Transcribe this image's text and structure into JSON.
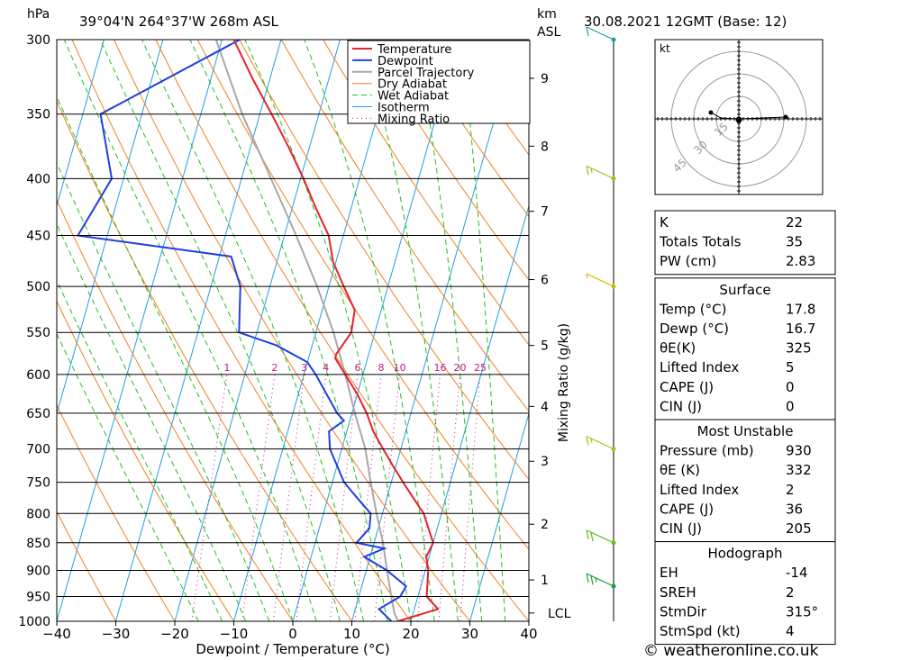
{
  "header": {
    "station": "39°04'N 264°37'W 268m ASL",
    "valid": "30.08.2021 12GMT (Base: 12)",
    "pressure_unit": "hPa",
    "height_unit": "km",
    "height_unit2": "ASL"
  },
  "footer": {
    "credit": "© weatheronline.co.uk"
  },
  "chart_data": {
    "type": "line",
    "xlabel": "Dewpoint / Temperature (°C)",
    "ylabel": "Mixing Ratio (g/kg)",
    "pressure_unit": "hPa",
    "x_ticks": [
      -40,
      -30,
      -20,
      -10,
      0,
      10,
      20,
      30,
      40
    ],
    "pressure_levels": [
      300,
      350,
      400,
      450,
      500,
      550,
      600,
      650,
      700,
      750,
      800,
      850,
      900,
      950,
      1000
    ],
    "xlim": [
      -40,
      40
    ],
    "ylim_hpa": [
      300,
      1000
    ],
    "skew_per_decade": 2.35,
    "legend": [
      "Temperature",
      "Dewpoint",
      "Parcel Trajectory",
      "Dry Adiabat",
      "Wet Adiabat",
      "Isotherm",
      "Mixing Ratio"
    ],
    "legend_position": "top-right",
    "colors": {
      "temperature": "#e8202a",
      "dewpoint": "#2040e0",
      "parcel": "#a8a8a8",
      "dry_adiabat": "#f08020",
      "wet_adiabat": "#20c020",
      "isotherm": "#20a0e0",
      "mixing_ratio": "#c0168c"
    },
    "mixing_ratio_labels": [
      "1",
      "2",
      "3",
      "4",
      "6",
      "8",
      "10",
      "16",
      "20",
      "25"
    ],
    "mixing_ratio_values": [
      1,
      2,
      3,
      4,
      6,
      8,
      10,
      16,
      20,
      25
    ],
    "height_ticks": [
      {
        "label": "9",
        "hpa": 325
      },
      {
        "label": "8",
        "hpa": 374
      },
      {
        "label": "7",
        "hpa": 428
      },
      {
        "label": "6",
        "hpa": 493
      },
      {
        "label": "5",
        "hpa": 565
      },
      {
        "label": "4",
        "hpa": 641
      },
      {
        "label": "3",
        "hpa": 718
      },
      {
        "label": "2",
        "hpa": 818
      },
      {
        "label": "1",
        "hpa": 918
      },
      {
        "label": "LCL",
        "hpa": 983
      }
    ],
    "temperature": [
      [
        1000,
        17.8
      ],
      [
        975,
        24
      ],
      [
        950,
        21.5
      ],
      [
        925,
        21
      ],
      [
        900,
        20.5
      ],
      [
        875,
        19.5
      ],
      [
        850,
        20
      ],
      [
        825,
        18.5
      ],
      [
        800,
        17
      ],
      [
        775,
        14.5
      ],
      [
        750,
        12
      ],
      [
        725,
        9.5
      ],
      [
        700,
        7
      ],
      [
        675,
        4.5
      ],
      [
        650,
        2.5
      ],
      [
        625,
        0
      ],
      [
        600,
        -3
      ],
      [
        580,
        -5.5
      ],
      [
        575,
        -5.5
      ],
      [
        550,
        -4
      ],
      [
        525,
        -4.5
      ],
      [
        500,
        -7.5
      ],
      [
        475,
        -10.5
      ],
      [
        450,
        -12.5
      ],
      [
        425,
        -16
      ],
      [
        400,
        -19.5
      ],
      [
        375,
        -23.5
      ],
      [
        350,
        -28
      ],
      [
        325,
        -33
      ],
      [
        300,
        -38
      ]
    ],
    "dewpoint": [
      [
        1000,
        16.7
      ],
      [
        975,
        14
      ],
      [
        950,
        17
      ],
      [
        930,
        17.5
      ],
      [
        900,
        13.5
      ],
      [
        875,
        9
      ],
      [
        860,
        12
      ],
      [
        850,
        7
      ],
      [
        825,
        8.5
      ],
      [
        800,
        8
      ],
      [
        775,
        5
      ],
      [
        750,
        2
      ],
      [
        700,
        -2
      ],
      [
        675,
        -3
      ],
      [
        660,
        -1
      ],
      [
        650,
        -2.5
      ],
      [
        600,
        -8
      ],
      [
        585,
        -10
      ],
      [
        565,
        -16
      ],
      [
        550,
        -23
      ],
      [
        525,
        -24
      ],
      [
        500,
        -25
      ],
      [
        470,
        -28
      ],
      [
        450,
        -55
      ],
      [
        400,
        -52
      ],
      [
        350,
        -57
      ],
      [
        300,
        -37
      ],
      [
        290,
        -35
      ]
    ],
    "parcel": [
      [
        1000,
        17.8
      ],
      [
        983,
        16.8
      ],
      [
        950,
        15.5
      ],
      [
        900,
        13.5
      ],
      [
        850,
        11.5
      ],
      [
        800,
        9
      ],
      [
        750,
        6.5
      ],
      [
        700,
        4
      ],
      [
        650,
        0.5
      ],
      [
        600,
        -3
      ],
      [
        550,
        -7
      ],
      [
        500,
        -12
      ],
      [
        450,
        -18
      ],
      [
        400,
        -25
      ],
      [
        350,
        -33
      ],
      [
        300,
        -41
      ],
      [
        290,
        -43
      ]
    ]
  },
  "hodograph": {
    "unit": "kt",
    "rings": [
      "15",
      "30",
      "45"
    ]
  },
  "wind_profile": {
    "levels": [
      {
        "hpa": 300,
        "speed_kt": 10
      },
      {
        "hpa": 400,
        "speed_kt": 15
      },
      {
        "hpa": 500,
        "speed_kt": 5
      },
      {
        "hpa": 700,
        "speed_kt": 15
      },
      {
        "hpa": 850,
        "speed_kt": 20
      },
      {
        "hpa": 930,
        "speed_kt": 25
      }
    ]
  },
  "indices": {
    "rows": [
      {
        "label": "K",
        "value": "22"
      },
      {
        "label": "Totals Totals",
        "value": "35"
      },
      {
        "label": "PW (cm)",
        "value": "2.83"
      }
    ]
  },
  "surface": {
    "title": "Surface",
    "rows": [
      {
        "label": "Temp (°C)",
        "value": "17.8"
      },
      {
        "label": "Dewp (°C)",
        "value": "16.7"
      },
      {
        "label": "θE(K)",
        "value": "325"
      },
      {
        "label": "Lifted Index",
        "value": "5"
      },
      {
        "label": "CAPE (J)",
        "value": "0"
      },
      {
        "label": "CIN (J)",
        "value": "0"
      }
    ]
  },
  "most_unstable": {
    "title": "Most Unstable",
    "rows": [
      {
        "label": "Pressure (mb)",
        "value": "930"
      },
      {
        "label": "θE (K)",
        "value": "332"
      },
      {
        "label": "Lifted Index",
        "value": "2"
      },
      {
        "label": "CAPE (J)",
        "value": "36"
      },
      {
        "label": "CIN (J)",
        "value": "205"
      }
    ]
  },
  "hodograph_table": {
    "title": "Hodograph",
    "rows": [
      {
        "label": "EH",
        "value": "-14"
      },
      {
        "label": "SREH",
        "value": "2"
      },
      {
        "label": "StmDir",
        "value": "315°"
      },
      {
        "label": "StmSpd (kt)",
        "value": "4"
      }
    ]
  }
}
